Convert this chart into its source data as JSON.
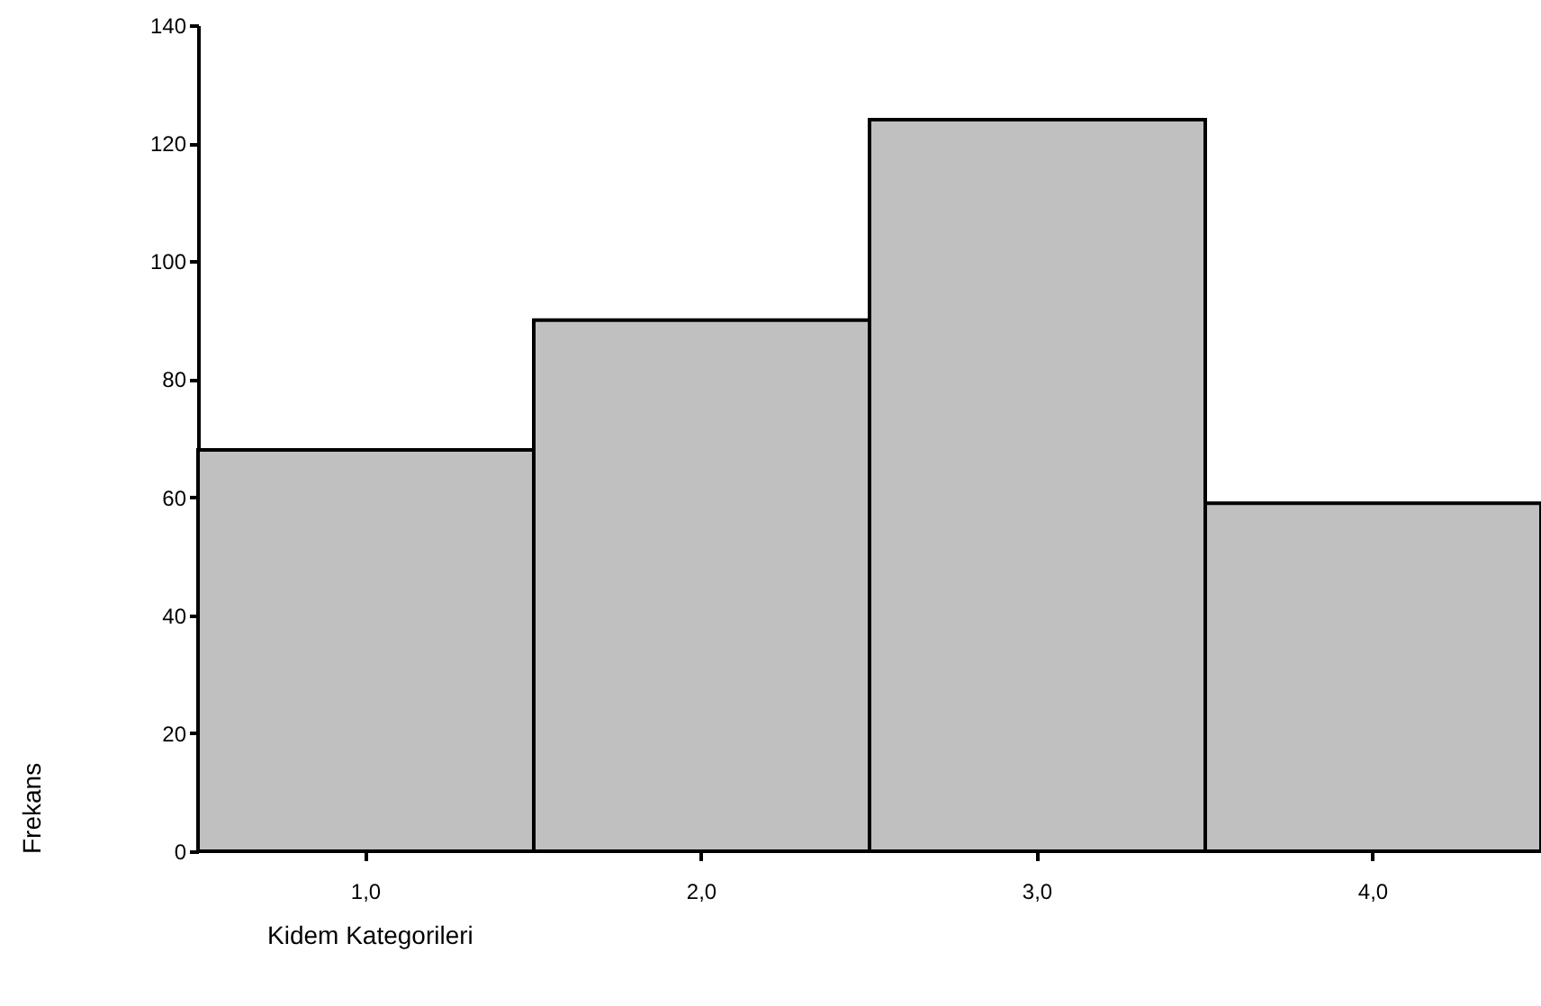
{
  "chart_data": {
    "type": "bar",
    "xlabel": "Kidem Kategorileri",
    "ylabel": "Frekans",
    "categories": [
      "1,0",
      "2,0",
      "3,0",
      "4,0"
    ],
    "values": [
      68,
      90,
      124,
      59
    ],
    "color": "#c0c0c0",
    "ylim": [
      0,
      140
    ],
    "yticks": [
      0,
      20,
      40,
      60,
      80,
      100,
      120,
      140
    ],
    "grid": false
  }
}
